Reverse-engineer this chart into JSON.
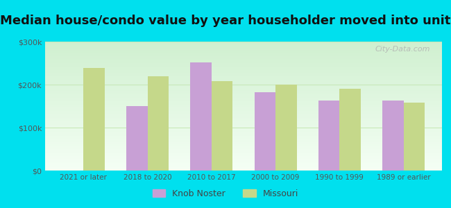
{
  "title": "Median house/condo value by year householder moved into unit",
  "categories": [
    "2021 or later",
    "2018 to 2020",
    "2010 to 2017",
    "2000 to 2009",
    "1990 to 1999",
    "1989 or earlier"
  ],
  "knob_noster": [
    0,
    150000,
    252000,
    183000,
    163000,
    163000
  ],
  "missouri": [
    238000,
    220000,
    208000,
    200000,
    190000,
    158000
  ],
  "knob_noster_color": "#c8a0d5",
  "missouri_color": "#c5d88a",
  "background_top": "#d0f0d0",
  "background_bottom": "#f5fff5",
  "outer_background": "#00e0ee",
  "ylim": [
    0,
    300000
  ],
  "yticks": [
    0,
    100000,
    200000,
    300000
  ],
  "ytick_labels": [
    "$0",
    "$100k",
    "$200k",
    "$300k"
  ],
  "legend_knob": "Knob Noster",
  "legend_missouri": "Missouri",
  "watermark": "City-Data.com",
  "title_fontsize": 13,
  "bar_width": 0.33,
  "grid_color": "#c8e8b8"
}
